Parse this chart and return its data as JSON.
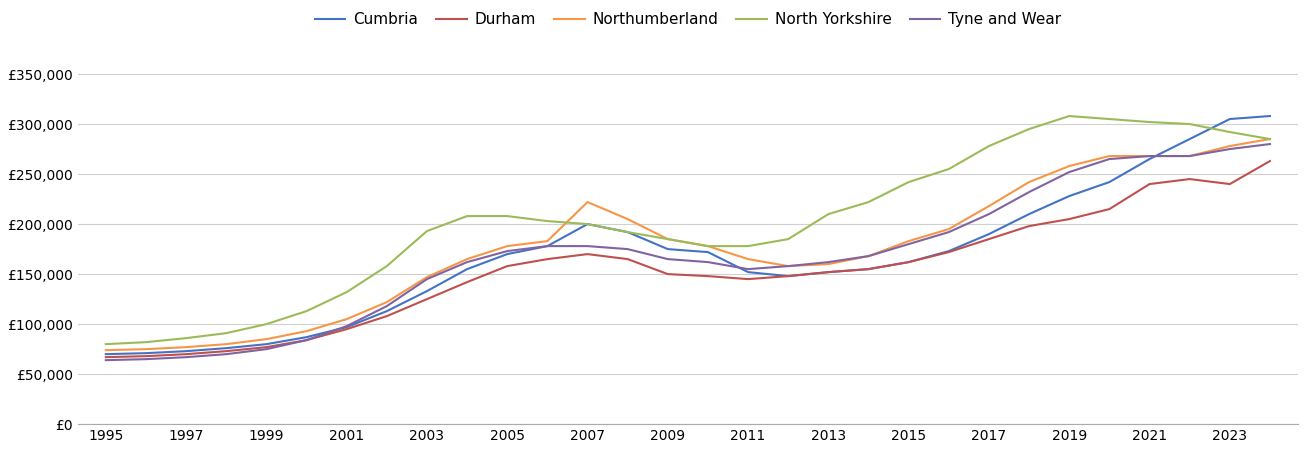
{
  "title": "",
  "series": {
    "Cumbria": {
      "color": "#4472C4",
      "values": [
        70000,
        71000,
        73000,
        76000,
        80000,
        87000,
        97000,
        113000,
        133000,
        155000,
        170000,
        178000,
        200000,
        192000,
        175000,
        172000,
        152000,
        148000,
        152000,
        155000,
        162000,
        173000,
        190000,
        210000,
        228000,
        242000,
        265000,
        285000,
        305000,
        308000
      ]
    },
    "Durham": {
      "color": "#C0504D",
      "values": [
        67000,
        68000,
        70000,
        73000,
        77000,
        84000,
        95000,
        108000,
        125000,
        142000,
        158000,
        165000,
        170000,
        165000,
        150000,
        148000,
        145000,
        148000,
        152000,
        155000,
        162000,
        172000,
        185000,
        198000,
        205000,
        215000,
        240000,
        245000,
        240000,
        263000
      ]
    },
    "Northumberland": {
      "color": "#F79646",
      "values": [
        74000,
        75000,
        77000,
        80000,
        85000,
        93000,
        105000,
        122000,
        147000,
        165000,
        178000,
        183000,
        222000,
        205000,
        185000,
        178000,
        165000,
        158000,
        160000,
        168000,
        183000,
        195000,
        218000,
        242000,
        258000,
        268000,
        268000,
        268000,
        278000,
        285000
      ]
    },
    "North Yorkshire": {
      "color": "#9BBB59",
      "values": [
        80000,
        82000,
        86000,
        91000,
        100000,
        113000,
        132000,
        158000,
        193000,
        208000,
        208000,
        203000,
        200000,
        192000,
        185000,
        178000,
        178000,
        185000,
        210000,
        222000,
        242000,
        255000,
        278000,
        295000,
        308000,
        305000,
        302000,
        300000,
        292000,
        285000
      ]
    },
    "Tyne and Wear": {
      "color": "#8064A2",
      "values": [
        64000,
        65000,
        67000,
        70000,
        75000,
        84000,
        98000,
        118000,
        145000,
        162000,
        173000,
        178000,
        178000,
        175000,
        165000,
        162000,
        155000,
        158000,
        162000,
        168000,
        180000,
        192000,
        210000,
        232000,
        252000,
        265000,
        268000,
        268000,
        275000,
        280000
      ]
    }
  },
  "years": [
    1995,
    1996,
    1997,
    1998,
    1999,
    2000,
    2001,
    2002,
    2003,
    2004,
    2005,
    2006,
    2007,
    2008,
    2009,
    2010,
    2011,
    2012,
    2013,
    2014,
    2015,
    2016,
    2017,
    2018,
    2019,
    2020,
    2021,
    2022,
    2023,
    2024
  ],
  "ylim": [
    0,
    370000
  ],
  "yticks": [
    0,
    50000,
    100000,
    150000,
    200000,
    250000,
    300000,
    350000
  ],
  "xtick_years": [
    1995,
    1997,
    1999,
    2001,
    2003,
    2005,
    2007,
    2009,
    2011,
    2013,
    2015,
    2017,
    2019,
    2021,
    2023
  ],
  "background_color": "#ffffff",
  "grid_color": "#d0d0d0",
  "legend_order": [
    "Cumbria",
    "Durham",
    "Northumberland",
    "North Yorkshire",
    "Tyne and Wear"
  ],
  "linewidth": 1.5,
  "tick_fontsize": 10,
  "legend_fontsize": 11
}
